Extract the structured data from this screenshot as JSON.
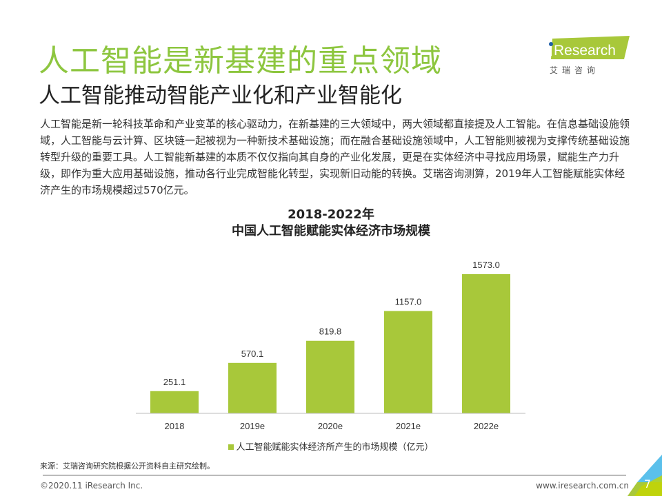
{
  "header": {
    "title": "人工智能是新基建的重点领域",
    "subtitle": "人工智能推动智能产业化和产业智能化"
  },
  "logo": {
    "brand": "iResearch",
    "cn": "艾 瑞 咨 询"
  },
  "body_text": "人工智能是新一轮科技革命和产业变革的核心驱动力，在新基建的三大领域中，两大领域都直接提及人工智能。在信息基础设施领域，人工智能与云计算、区块链一起被视为一种新技术基础设施；而在融合基础设施领域中，人工智能则被视为支撑传统基础设施转型升级的重要工具。人工智能新基建的本质不仅仅指向其自身的产业化发展，更是在实体经济中寻找应用场景，赋能生产力升级，即作为重大应用基础设施，推动各行业完成智能化转型，实现新旧动能的转换。艾瑞咨询测算，2019年人工智能赋能实体经济产生的市场规模超过570亿元。",
  "chart_data": {
    "type": "bar",
    "title_line1": "2018-2022年",
    "title_line2": "中国人工智能赋能实体经济市场规模",
    "categories": [
      "2018",
      "2019e",
      "2020e",
      "2021e",
      "2022e"
    ],
    "series": [
      {
        "name": "人工智能赋能实体经济所产生的市场规模（亿元）",
        "values": [
          251.1,
          570.1,
          819.8,
          1157.0,
          1573.0
        ],
        "labels": [
          "251.1",
          "570.1",
          "819.8",
          "1157.0",
          "1573.0"
        ]
      }
    ],
    "ylim": [
      0,
      1700
    ],
    "grid": false,
    "legend": "bottom",
    "color": "#a8c83a"
  },
  "footer": {
    "source": "来源：艾瑞咨询研究院根据公开资料自主研究绘制。",
    "copyright": "©2020.11 iResearch Inc.",
    "url": "www.iresearch.com.cn",
    "page": "7"
  },
  "colors": {
    "accent": "#8dc63f",
    "bar": "#a8c83a",
    "blue": "#5bc0eb"
  }
}
